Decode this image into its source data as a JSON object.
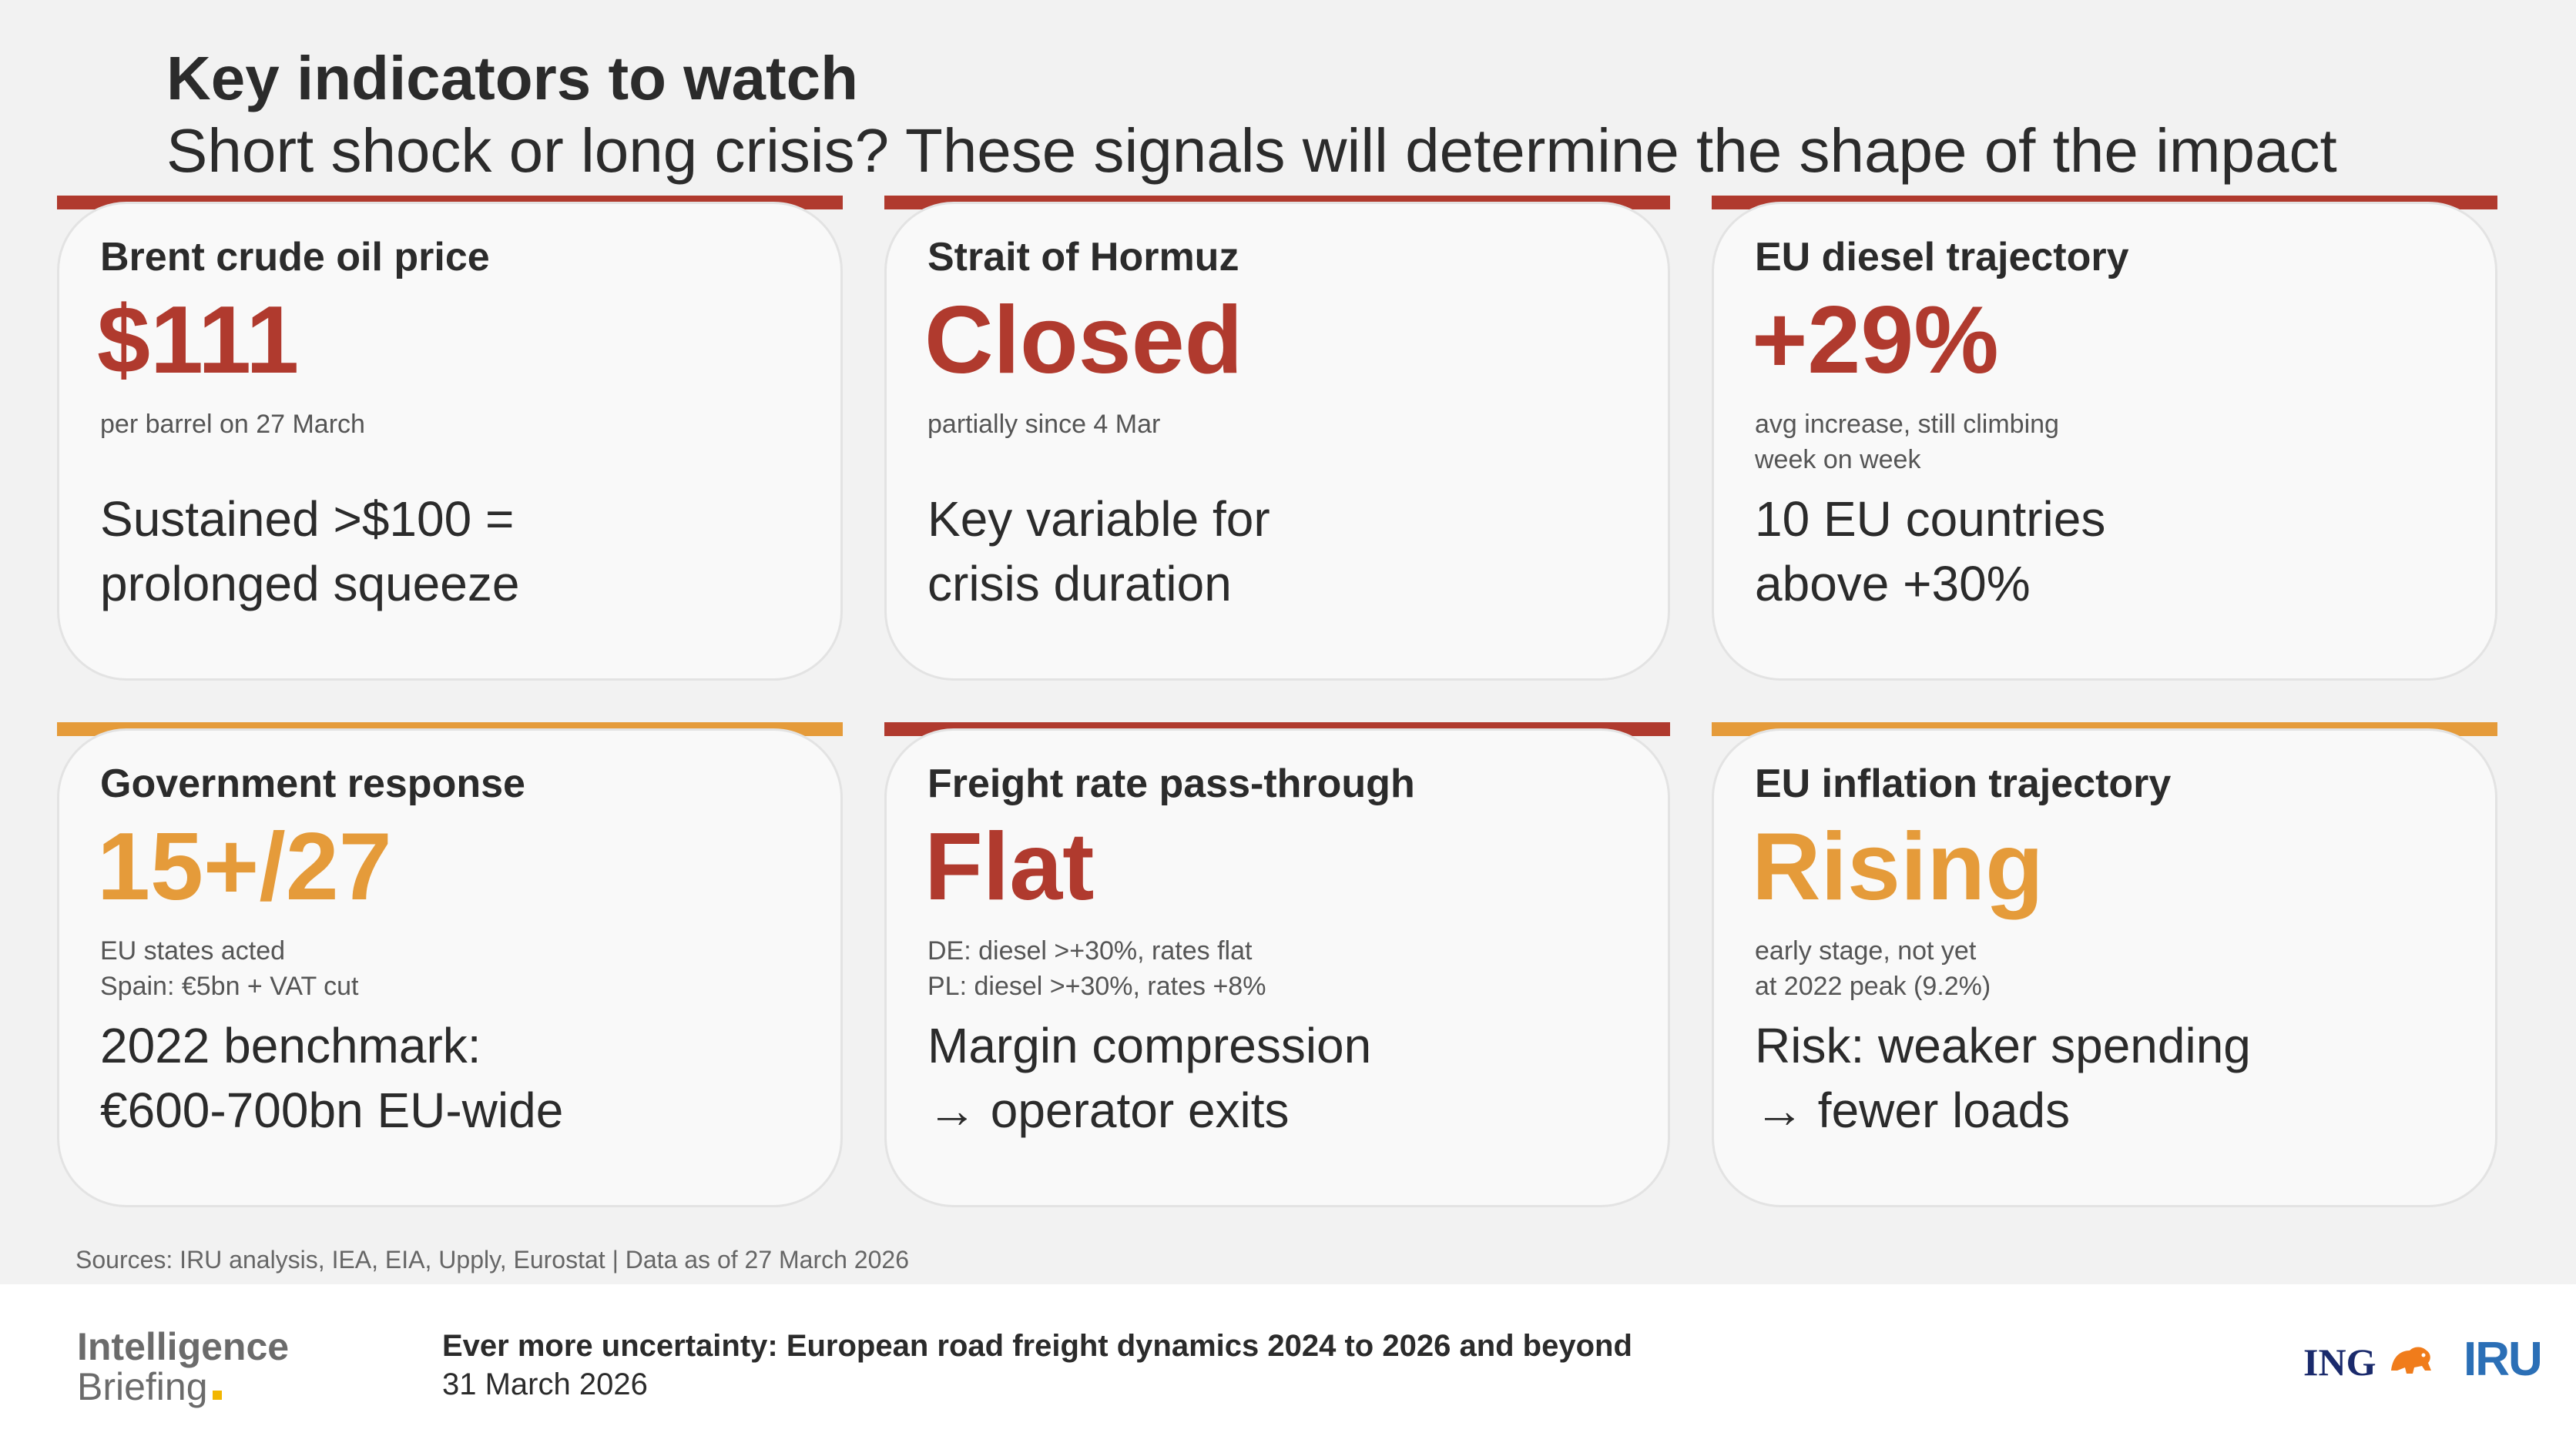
{
  "header": {
    "title": "Key indicators to watch",
    "subtitle": "Short shock or long crisis? These signals will determine the shape of the impact"
  },
  "colors": {
    "red": "#b03a2e",
    "orange": "#e59b3a"
  },
  "cards": [
    {
      "label": "Brent crude oil price",
      "value": "$111",
      "note": [
        "per barrel on 27 March"
      ],
      "body": [
        "Sustained >$100 =",
        "prolonged squeeze"
      ],
      "accent": "red"
    },
    {
      "label": "Strait of Hormuz",
      "value": "Closed",
      "note": [
        "partially since 4 Mar"
      ],
      "body": [
        "Key variable for",
        "crisis duration"
      ],
      "accent": "red"
    },
    {
      "label": "EU diesel trajectory",
      "value": "+29%",
      "note": [
        "avg increase, still climbing",
        "week on week"
      ],
      "body": [
        "10 EU countries",
        "above +30%"
      ],
      "accent": "red"
    },
    {
      "label": "Government response",
      "value": "15+/27",
      "note": [
        "EU states acted",
        "Spain: €5bn + VAT cut"
      ],
      "body": [
        "2022 benchmark:",
        "€600-700bn EU-wide"
      ],
      "accent": "orange"
    },
    {
      "label": "Freight rate pass-through",
      "value": "Flat",
      "note": [
        "DE: diesel >+30%, rates flat",
        "PL: diesel >+30%, rates +8%"
      ],
      "body": [
        "Margin compression",
        "→ operator exits"
      ],
      "accent": "red"
    },
    {
      "label": "EU inflation trajectory",
      "value": "Rising",
      "note": [
        "early stage, not yet",
        "at 2022 peak (9.2%)"
      ],
      "body": [
        "Risk: weaker spending",
        "→ fewer loads"
      ],
      "accent": "orange"
    }
  ],
  "sources": "Sources: IRU analysis, IEA, EIA, Upply, Eurostat  |  Data as of 27 March 2026",
  "footer": {
    "brand_line1": "Intelligence",
    "brand_line2": "Briefing",
    "report_title": "Ever more uncertainty: European road freight dynamics 2024 to 2026 and beyond",
    "report_date": "31 March 2026",
    "ing_logo": "ING",
    "lion_icon": "lion-icon",
    "iru_logo": "IRU"
  }
}
